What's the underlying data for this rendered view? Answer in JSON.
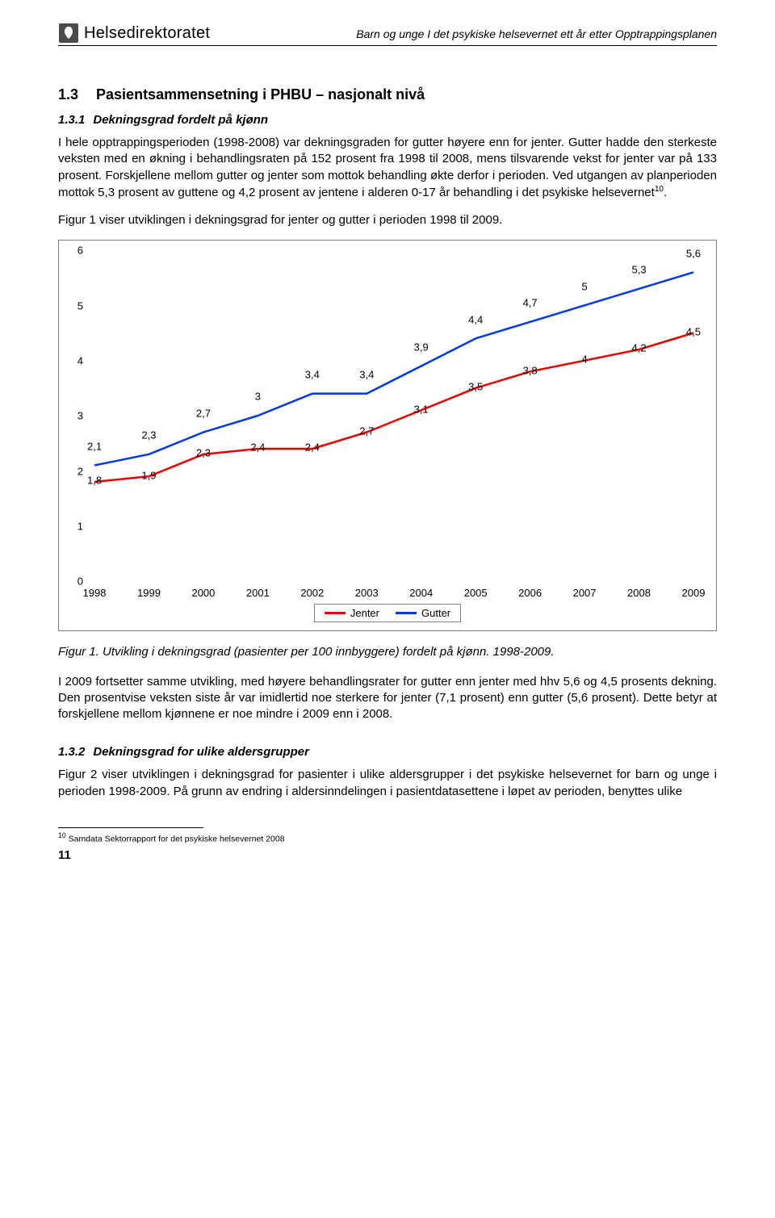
{
  "header": {
    "brand": "Helsedirektoratet",
    "doc_title": "Barn og unge I det psykiske helsevernet ett år etter Opptrappingsplanen"
  },
  "sections": {
    "h2_num": "1.3",
    "h2_title": "Pasientsammensetning i PHBU – nasjonalt nivå",
    "h3a_num": "1.3.1",
    "h3a_title": "Dekningsgrad fordelt på kjønn",
    "h3b_num": "1.3.2",
    "h3b_title": "Dekningsgrad for ulike aldersgrupper"
  },
  "paragraphs": {
    "p1": "I hele opptrappingsperioden (1998-2008) var dekningsgraden for gutter høyere enn for jenter. Gutter hadde den sterkeste veksten med en økning i behandlingsraten på 152 prosent fra 1998 til 2008, mens tilsvarende vekst for jenter var på 133 prosent. Forskjellene mellom gutter og jenter som mottok behandling økte derfor i perioden. Ved utgangen av planperioden mottok 5,3 prosent av guttene og 4,2 prosent av jentene i alderen 0-17 år behandling i det psykiske helsevernet",
    "p1_fnref": "10",
    "p1_tail": ".",
    "p2": "Figur 1 viser utviklingen i dekningsgrad for jenter og gutter i perioden 1998 til 2009.",
    "caption1": "Figur 1. Utvikling i dekningsgrad (pasienter per 100 innbyggere) fordelt på kjønn. 1998-2009.",
    "p3": "I 2009 fortsetter samme utvikling, med høyere behandlingsrater for gutter enn jenter med hhv 5,6 og 4,5 prosents dekning. Den prosentvise veksten siste år var imidlertid noe sterkere for jenter (7,1 prosent) enn gutter (5,6 prosent). Dette betyr at forskjellene mellom kjønnene er noe mindre i 2009 enn i 2008.",
    "p4": "Figur 2 viser utviklingen i dekningsgrad for pasienter i ulike aldersgrupper i det psykiske helsevernet for barn og unge i perioden 1998-2009. På grunn av endring i aldersinndelingen i pasientdatasettene i løpet av perioden, benyttes ulike"
  },
  "chart": {
    "type": "line",
    "ylim": [
      0,
      6
    ],
    "ytick_step": 1,
    "x_categories": [
      "1998",
      "1999",
      "2000",
      "2001",
      "2002",
      "2003",
      "2004",
      "2005",
      "2006",
      "2007",
      "2008",
      "2009"
    ],
    "series": {
      "gutter": {
        "label": "Gutter",
        "color": "#0039e6",
        "values": [
          2.1,
          2.3,
          2.7,
          3.0,
          3.4,
          3.4,
          3.9,
          4.4,
          4.7,
          5.0,
          5.3,
          5.6
        ],
        "display": [
          "2,1",
          "2,3",
          "2,7",
          "3",
          "3,4",
          "3,4",
          "3,9",
          "4,4",
          "4,7",
          "5",
          "5,3",
          "5,6"
        ]
      },
      "jenter": {
        "label": "Jenter",
        "color": "#e60000",
        "values": [
          1.8,
          1.9,
          2.3,
          2.4,
          2.4,
          2.7,
          3.1,
          3.5,
          3.8,
          4.0,
          4.2,
          4.5
        ],
        "display": [
          "1,8",
          "1,9",
          "2,3",
          "2,4",
          "2,4",
          "2,7",
          "3,1",
          "3,5",
          "3,8",
          "4",
          "4,2",
          "4,5"
        ]
      }
    },
    "line_width": 2.5,
    "label_fontsize": 13,
    "background_color": "#ffffff",
    "border_color": "#7d7d7d"
  },
  "footnote": {
    "num": "10",
    "text": " Samdata Sektorrapport for det psykiske helsevernet 2008"
  },
  "page_number": "11"
}
